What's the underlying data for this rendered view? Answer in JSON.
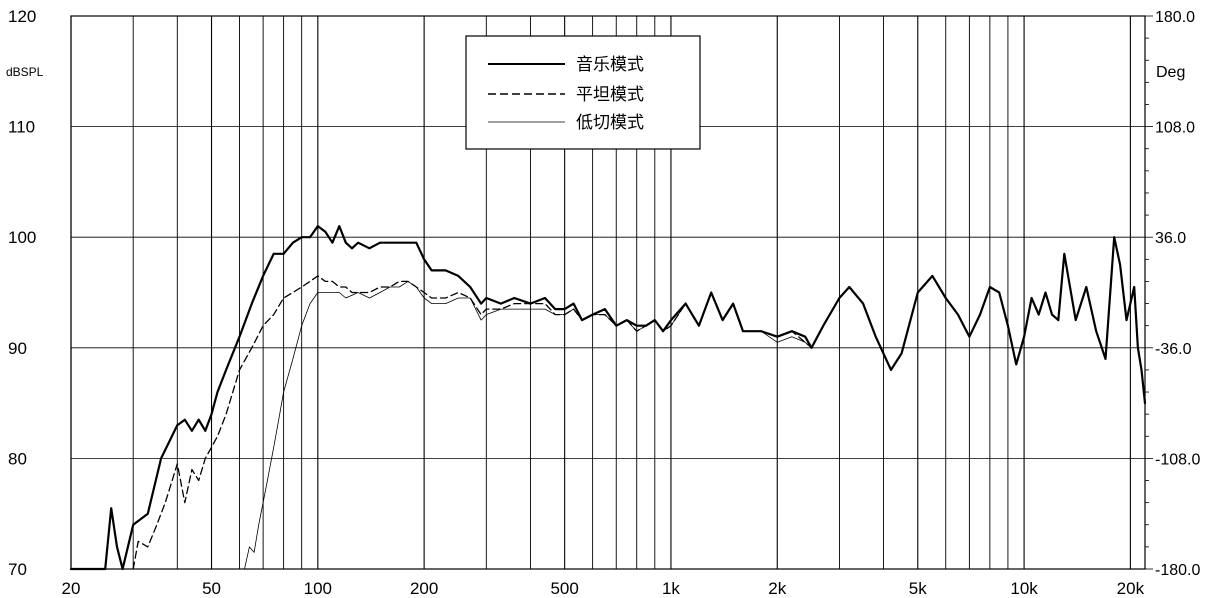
{
  "chart_data": {
    "type": "line",
    "title": "",
    "xlabel": "",
    "ylabel": "dBSPL",
    "y2label": "Deg",
    "x_scale": "log",
    "xlim": [
      20,
      22000
    ],
    "ylim": [
      70,
      120
    ],
    "y2lim": [
      -180.0,
      180.0
    ],
    "grid": true,
    "legend_position": "top-center",
    "x_tick_labels": [
      "20",
      "50",
      "100",
      "200",
      "500",
      "1k",
      "2k",
      "5k",
      "10k",
      "20k"
    ],
    "x_tick_values": [
      20,
      50,
      100,
      200,
      500,
      1000,
      2000,
      5000,
      10000,
      20000
    ],
    "x_minor_grid": [
      30,
      40,
      60,
      70,
      80,
      90,
      300,
      400,
      600,
      700,
      800,
      900,
      3000,
      4000,
      6000,
      7000,
      8000,
      9000
    ],
    "y_tick_labels": [
      "70",
      "80",
      "90",
      "100",
      "110",
      "120"
    ],
    "y_tick_values": [
      70,
      80,
      90,
      100,
      110,
      120
    ],
    "y2_tick_labels": [
      "-180.0",
      "-108.0",
      "-36.0",
      "36.0",
      "108.0",
      "180.0"
    ],
    "series": [
      {
        "name": "音乐模式",
        "style": "solid-thick",
        "color": "#000000",
        "x": [
          20,
          25,
          26,
          27,
          28,
          30,
          33,
          36,
          40,
          42,
          44,
          46,
          48,
          50,
          52,
          55,
          60,
          65,
          70,
          75,
          80,
          85,
          90,
          95,
          100,
          105,
          110,
          115,
          120,
          125,
          130,
          140,
          150,
          160,
          170,
          180,
          190,
          200,
          210,
          230,
          250,
          270,
          290,
          300,
          330,
          360,
          400,
          440,
          470,
          500,
          530,
          560,
          600,
          650,
          700,
          750,
          800,
          850,
          900,
          950,
          1000,
          1100,
          1200,
          1300,
          1400,
          1500,
          1600,
          1800,
          2000,
          2200,
          2400,
          2500,
          2700,
          3000,
          3200,
          3500,
          3800,
          4200,
          4500,
          5000,
          5500,
          6000,
          6500,
          7000,
          7500,
          8000,
          8500,
          9000,
          9500,
          10000,
          10500,
          11000,
          11500,
          12000,
          12500,
          13000,
          14000,
          15000,
          16000,
          17000,
          18000,
          18700,
          19500,
          20500,
          21000,
          21500,
          22000
        ],
        "values": [
          70,
          70,
          75.5,
          72,
          70,
          74,
          75,
          80,
          83,
          83.5,
          82.5,
          83.5,
          82.5,
          84,
          86,
          88,
          91,
          94,
          96.5,
          98.5,
          98.5,
          99.5,
          100,
          100,
          101,
          100.5,
          99.5,
          101,
          99.5,
          99,
          99.5,
          99,
          99.5,
          99.5,
          99.5,
          99.5,
          99.5,
          98,
          97,
          97,
          96.5,
          95.5,
          94,
          94.5,
          94,
          94.5,
          94,
          94.5,
          93.5,
          93.5,
          94,
          92.5,
          93,
          93.5,
          92,
          92.5,
          92,
          92,
          92.5,
          91.5,
          92.5,
          94,
          92,
          95,
          92.5,
          94,
          91.5,
          91.5,
          91,
          91.5,
          91,
          90,
          92,
          94.5,
          95.5,
          94,
          91,
          88,
          89.5,
          95,
          96.5,
          94.5,
          93,
          91,
          93,
          95.5,
          95,
          92,
          88.5,
          91,
          94.5,
          93,
          95,
          93,
          92.5,
          98.5,
          92.5,
          95.5,
          91.5,
          89,
          100,
          97.5,
          92.5,
          95.5,
          90,
          88,
          85
        ]
      },
      {
        "name": "平坦模式",
        "style": "dashed",
        "color": "#000000",
        "x": [
          30,
          31,
          33,
          35,
          37,
          40,
          42,
          44,
          46,
          48,
          50,
          52,
          55,
          60,
          65,
          70,
          75,
          80,
          85,
          90,
          95,
          100,
          105,
          110,
          115,
          120,
          125,
          130,
          140,
          150,
          160,
          170,
          180,
          190,
          200,
          210,
          230,
          250,
          270,
          290,
          300,
          330,
          360,
          400,
          440,
          470,
          500,
          530,
          560,
          600,
          650,
          700,
          750,
          800,
          850,
          900,
          950,
          1000,
          1100,
          1200,
          1300,
          1400,
          1500,
          1600,
          1800,
          2000,
          2200,
          2400,
          2500,
          2700,
          3000
        ],
        "values": [
          70,
          72.5,
          72,
          74,
          76,
          79.5,
          76,
          79,
          78,
          80,
          81,
          82,
          84,
          88,
          90,
          92,
          93,
          94.5,
          95,
          95.5,
          96,
          96.5,
          96,
          96,
          95.5,
          95.5,
          95,
          95,
          95,
          95.5,
          95.5,
          96,
          96,
          95.5,
          95,
          94.5,
          94.5,
          95,
          94.5,
          93,
          93.5,
          93.5,
          94,
          94,
          94,
          93,
          93,
          93.5,
          92.5,
          93,
          93,
          92,
          92.5,
          91.5,
          92,
          92.5,
          91.5,
          92,
          94,
          92,
          95,
          92.5,
          94,
          91.5,
          91.5,
          91,
          91.5,
          90.5,
          90,
          92,
          94.5
        ]
      },
      {
        "name": "低切模式",
        "style": "solid-thin",
        "color": "#000000",
        "x": [
          62,
          64,
          66,
          68,
          70,
          72,
          75,
          78,
          80,
          85,
          90,
          95,
          100,
          105,
          110,
          115,
          120,
          130,
          140,
          150,
          160,
          170,
          180,
          190,
          200,
          210,
          230,
          250,
          270,
          290,
          300,
          330,
          360,
          400,
          440,
          470,
          500,
          530,
          560,
          600,
          650,
          700,
          750,
          800,
          850,
          900,
          950,
          1000,
          1100,
          1200,
          1300,
          1400,
          1500,
          1600,
          1800,
          2000,
          2200,
          2400,
          2500,
          2700,
          3000
        ],
        "values": [
          70,
          72,
          71.5,
          74,
          76,
          78,
          81,
          84,
          86,
          89,
          92,
          94,
          95,
          95,
          95,
          95,
          94.5,
          95,
          94.5,
          95,
          95.5,
          95.5,
          96,
          95.5,
          94.5,
          94,
          94,
          94.5,
          94.5,
          92.5,
          93,
          93.5,
          93.5,
          93.5,
          93.5,
          93,
          93,
          93.5,
          92.5,
          93,
          93,
          92,
          92.5,
          91.5,
          92,
          92.5,
          91.5,
          92,
          94,
          92,
          95,
          92.5,
          94,
          91.5,
          91.5,
          90.5,
          91,
          90.5,
          90,
          92,
          94.5
        ]
      }
    ]
  }
}
